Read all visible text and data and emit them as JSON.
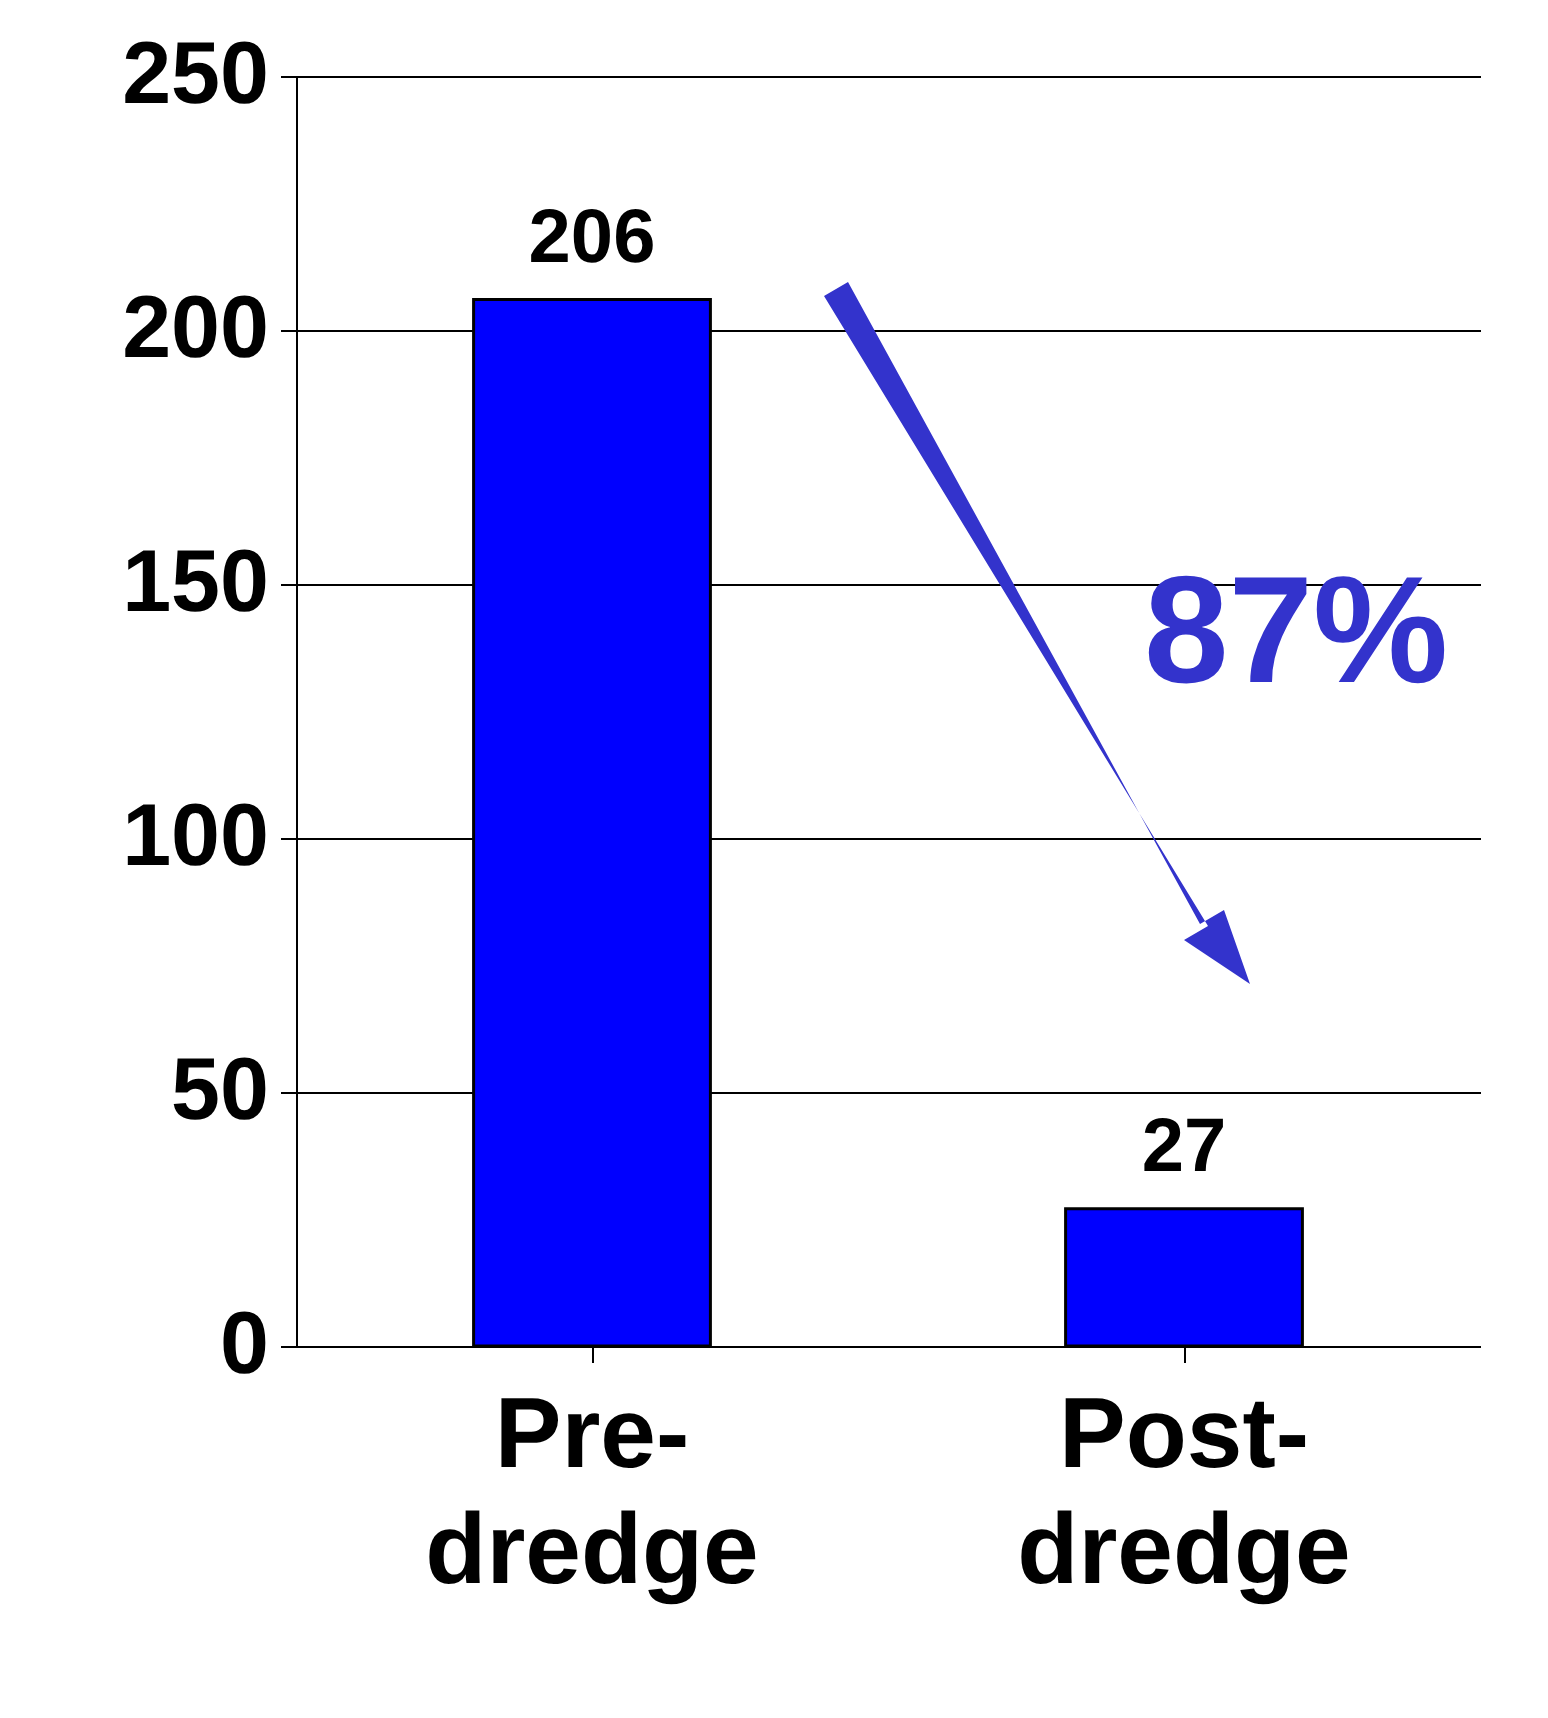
{
  "chart_data": {
    "type": "bar",
    "categories": [
      "Pre-dredge",
      "Post-dredge"
    ],
    "values": [
      206,
      27
    ],
    "color": "#0000ff",
    "ylim": [
      0,
      250
    ],
    "yticks": [
      0,
      50,
      100,
      150,
      200,
      250
    ],
    "grid": "y",
    "data_labels": true,
    "annotations": [
      "87%"
    ]
  }
}
